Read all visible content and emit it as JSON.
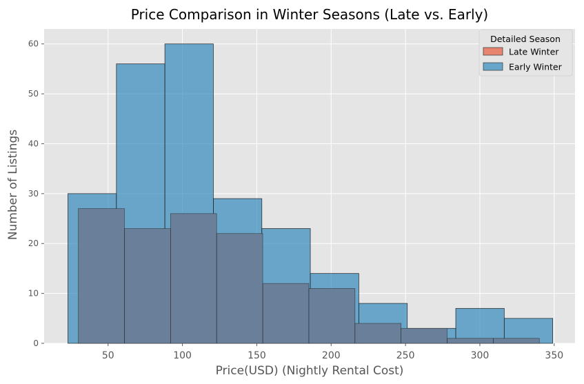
{
  "chart_data": {
    "type": "bar",
    "subtype": "overlapping-histogram",
    "title": "Price Comparison in Winter Seasons (Late vs. Early)",
    "xlabel": "Price(USD) (Nightly Rental Cost)",
    "ylabel": "Number of Listings",
    "xlim": [
      7,
      364
    ],
    "ylim": [
      0,
      63
    ],
    "xticks": [
      50,
      100,
      150,
      200,
      250,
      300,
      350
    ],
    "yticks": [
      0,
      10,
      20,
      30,
      40,
      50,
      60
    ],
    "grid": true,
    "style": "ggplot",
    "legend": {
      "title": "Detailed Season",
      "position": "top-right",
      "entries": [
        "Late Winter",
        "Early Winter"
      ]
    },
    "series": [
      {
        "name": "Early Winter",
        "color": "#348ABD",
        "bins": [
          {
            "x0": 23,
            "x1": 55.6,
            "count": 30
          },
          {
            "x0": 55.6,
            "x1": 88.2,
            "count": 56
          },
          {
            "x0": 88.2,
            "x1": 120.8,
            "count": 60
          },
          {
            "x0": 120.8,
            "x1": 153.4,
            "count": 29
          },
          {
            "x0": 153.4,
            "x1": 186.0,
            "count": 23
          },
          {
            "x0": 186.0,
            "x1": 218.6,
            "count": 14
          },
          {
            "x0": 218.6,
            "x1": 251.2,
            "count": 8
          },
          {
            "x0": 251.2,
            "x1": 283.8,
            "count": 3
          },
          {
            "x0": 283.8,
            "x1": 316.4,
            "count": 7
          },
          {
            "x0": 316.4,
            "x1": 349.0,
            "count": 5
          }
        ]
      },
      {
        "name": "Late Winter",
        "color": "#E24A33",
        "bins": [
          {
            "x0": 30,
            "x1": 61,
            "count": 27
          },
          {
            "x0": 61,
            "x1": 92,
            "count": 23
          },
          {
            "x0": 92,
            "x1": 123,
            "count": 26
          },
          {
            "x0": 123,
            "x1": 154,
            "count": 22
          },
          {
            "x0": 154,
            "x1": 185,
            "count": 12
          },
          {
            "x0": 185,
            "x1": 216,
            "count": 11
          },
          {
            "x0": 216,
            "x1": 247,
            "count": 4
          },
          {
            "x0": 247,
            "x1": 278,
            "count": 3
          },
          {
            "x0": 278,
            "x1": 309,
            "count": 1
          },
          {
            "x0": 309,
            "x1": 340,
            "count": 1
          }
        ]
      }
    ],
    "overlap_color": "#6A7F99"
  }
}
